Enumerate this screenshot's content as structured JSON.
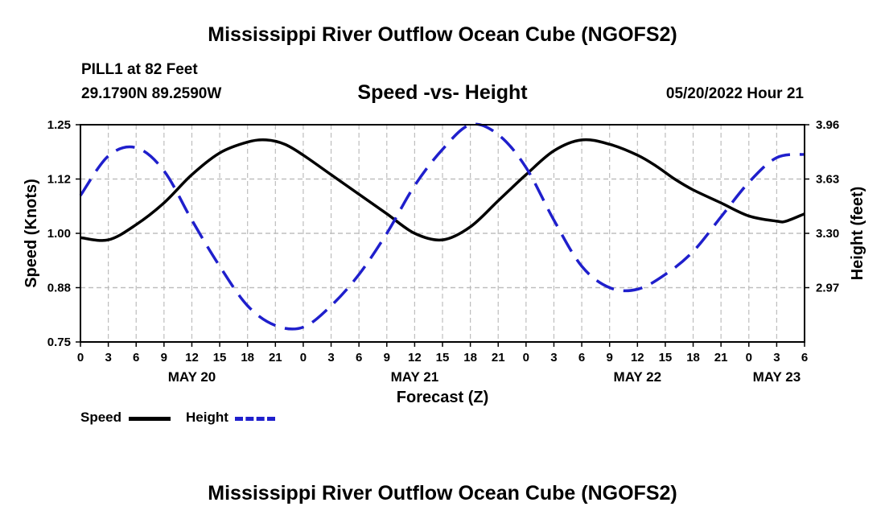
{
  "header": {
    "main_title": "Mississippi River Outflow Ocean Cube (NGOFS2)",
    "station": "PILL1 at 82 Feet",
    "coords": "29.1790N  89.2590W",
    "subtitle": "Speed -vs- Height",
    "datetime": "05/20/2022 Hour 21"
  },
  "footer": {
    "bottom_title": "Mississippi River Outflow Ocean Cube (NGOFS2)"
  },
  "legend": {
    "speed_label": "Speed",
    "height_label": "Height"
  },
  "colors": {
    "speed": "#000000",
    "height": "#1f1fcc",
    "grid": "#bdbdbd"
  },
  "chart_data": {
    "type": "line",
    "title": "Speed -vs- Height",
    "xlabel": "Forecast (Z)",
    "ylabel": "Speed (Knots)",
    "y2label": "Height (feet)",
    "x_unit": "hours since May 20 00Z",
    "xlim": [
      0,
      78
    ],
    "ylim": [
      0.75,
      1.25
    ],
    "y2lim": [
      2.64,
      3.96
    ],
    "yticks": [
      "0.75",
      "0.88",
      "1.00",
      "1.12",
      "1.25"
    ],
    "yticks_values": [
      0.75,
      0.875,
      1.0,
      1.125,
      1.25
    ],
    "y2ticks": [
      "2.97",
      "3.30",
      "3.63",
      "3.96"
    ],
    "y2ticks_values": [
      2.97,
      3.3,
      3.63,
      3.96
    ],
    "xticks": [
      "0",
      "3",
      "6",
      "9",
      "12",
      "15",
      "18",
      "21",
      "0",
      "3",
      "6",
      "9",
      "12",
      "15",
      "18",
      "21",
      "0",
      "3",
      "6",
      "9",
      "12",
      "15",
      "18",
      "21",
      "0",
      "3",
      "6"
    ],
    "date_labels": [
      {
        "label": "MAY 20",
        "hour": 12
      },
      {
        "label": "MAY 21",
        "hour": 36
      },
      {
        "label": "MAY 22",
        "hour": 60
      },
      {
        "label": "MAY 23",
        "hour": 75
      }
    ],
    "grid": true,
    "series": [
      {
        "name": "Speed",
        "axis": "left",
        "style": "solid",
        "x": [
          0,
          3,
          6,
          9,
          12,
          15,
          18,
          20,
          22,
          24,
          27,
          30,
          33,
          36,
          39,
          42,
          45,
          48,
          51,
          54,
          57,
          60,
          62,
          64,
          66,
          69,
          72,
          75,
          76,
          78
        ],
        "values": [
          0.99,
          0.985,
          1.02,
          1.07,
          1.135,
          1.185,
          1.21,
          1.215,
          1.205,
          1.18,
          1.135,
          1.09,
          1.045,
          1.0,
          0.985,
          1.015,
          1.075,
          1.135,
          1.19,
          1.215,
          1.205,
          1.18,
          1.155,
          1.125,
          1.1,
          1.07,
          1.04,
          1.028,
          1.028,
          1.045
        ]
      },
      {
        "name": "Height",
        "axis": "right",
        "style": "dashed",
        "x": [
          0,
          3,
          6,
          9,
          12,
          15,
          18,
          21,
          24,
          27,
          30,
          33,
          36,
          39,
          42,
          45,
          48,
          51,
          54,
          57,
          60,
          63,
          66,
          69,
          72,
          75,
          78
        ],
        "values": [
          3.53,
          3.77,
          3.82,
          3.68,
          3.38,
          3.1,
          2.86,
          2.74,
          2.73,
          2.86,
          3.05,
          3.3,
          3.59,
          3.81,
          3.96,
          3.9,
          3.7,
          3.38,
          3.1,
          2.97,
          2.96,
          3.05,
          3.19,
          3.4,
          3.61,
          3.76,
          3.78
        ]
      }
    ]
  }
}
